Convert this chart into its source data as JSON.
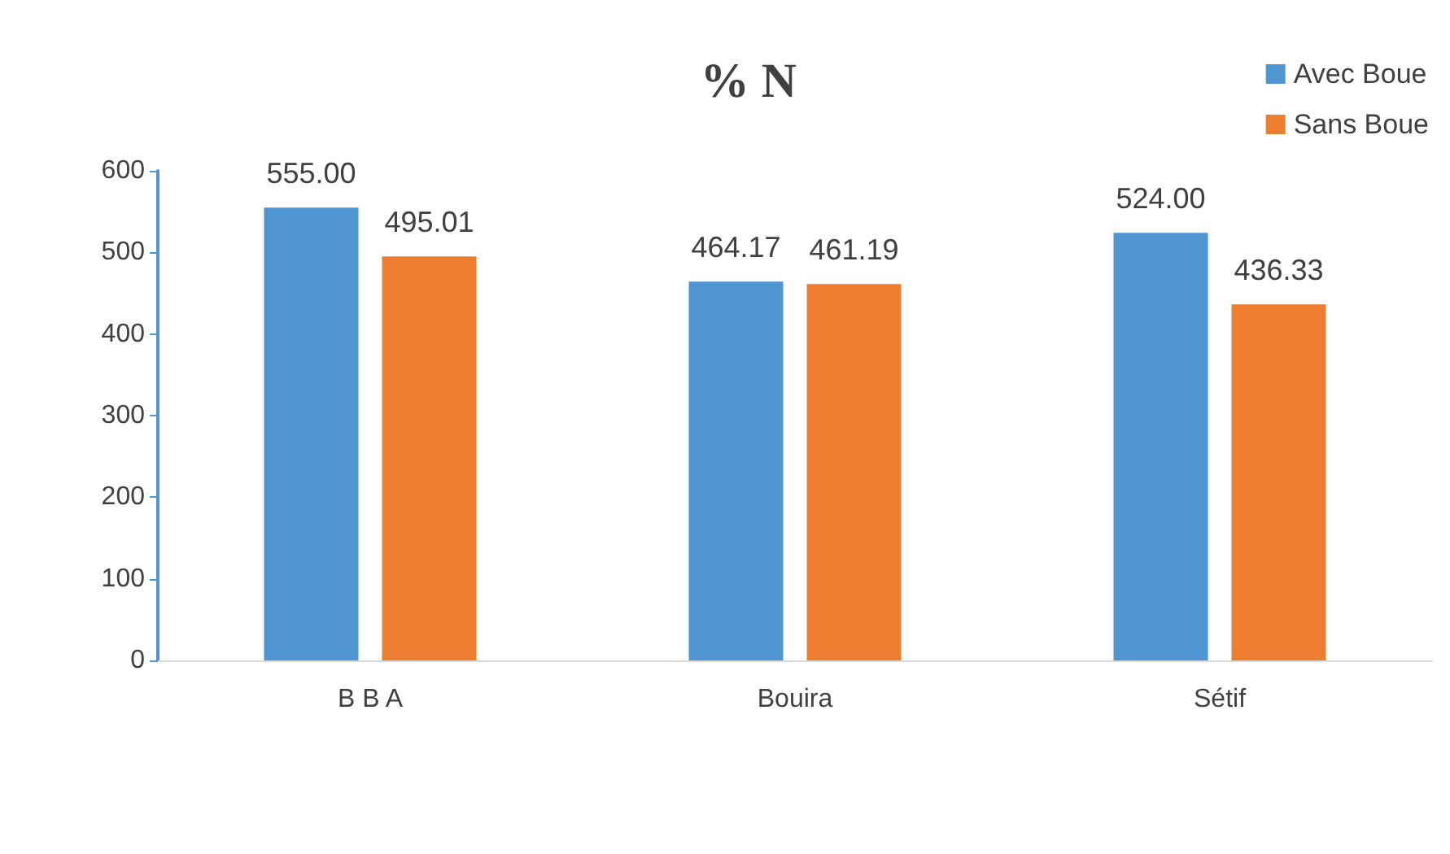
{
  "chart_data": {
    "type": "bar",
    "title": "% N",
    "categories": [
      "B B A",
      "Bouira",
      "Sétif"
    ],
    "series": [
      {
        "name": "Avec Boue",
        "color": "#4e95d2",
        "values": [
          555.0,
          464.17,
          524.0
        ],
        "value_labels": [
          "555.00",
          "464.17",
          "524.00"
        ]
      },
      {
        "name": "Sans Boue",
        "color": "#ed7d31",
        "values": [
          495.01,
          461.19,
          436.33
        ],
        "value_labels": [
          "495.01",
          "461.19",
          "436.33"
        ]
      }
    ],
    "ylim": [
      0,
      600
    ],
    "yticks": [
      0,
      100,
      200,
      300,
      400,
      500,
      600
    ],
    "grid": false,
    "legend": "top right"
  }
}
